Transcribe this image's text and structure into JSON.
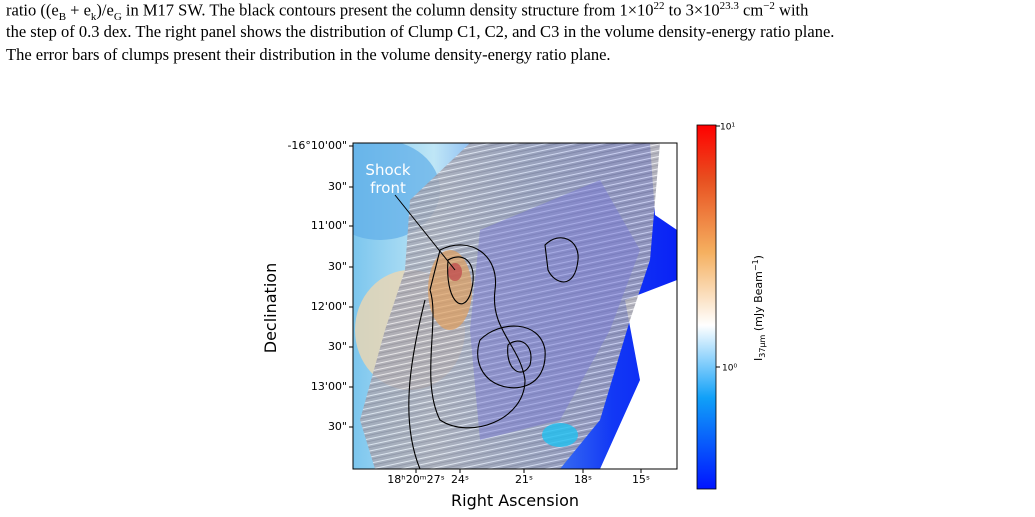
{
  "caption": {
    "lines": [
      [
        "ratio ((e",
        "B",
        " + e",
        "k",
        ")/e",
        "G",
        " in M17 SW. The black contours present the column density structure from 1×10",
        "22",
        " to 3×10",
        "23.3",
        " cm",
        "−2",
        " with"
      ],
      [
        "the step of 0.3 dex. The right panel shows the distribution of Clump C1, C2, and C3 in the volume density-energy ratio plane."
      ],
      [
        "The error bars of clumps present their distribution in the volume density-energy ratio plane."
      ]
    ]
  },
  "figure": {
    "y_axis_title": "Declination",
    "x_axis_title": "Right Ascension",
    "y_ticks": [
      "-16°10'00\"",
      "30\"",
      "11'00\"",
      "30\"",
      "12'00\"",
      "30\"",
      "13'00\"",
      "30\""
    ],
    "x_ticks": [
      "18ʰ20ᵐ27ˢ",
      "24ˢ",
      "21ˢ",
      "18ˢ",
      "15ˢ"
    ],
    "annotation": [
      "Shock",
      "front"
    ],
    "colorbar": {
      "ticks": [
        "10¹",
        "10⁰"
      ],
      "label": [
        "I",
        "37μm",
        " (mJy Beam",
        "−1",
        ")"
      ]
    }
  }
}
